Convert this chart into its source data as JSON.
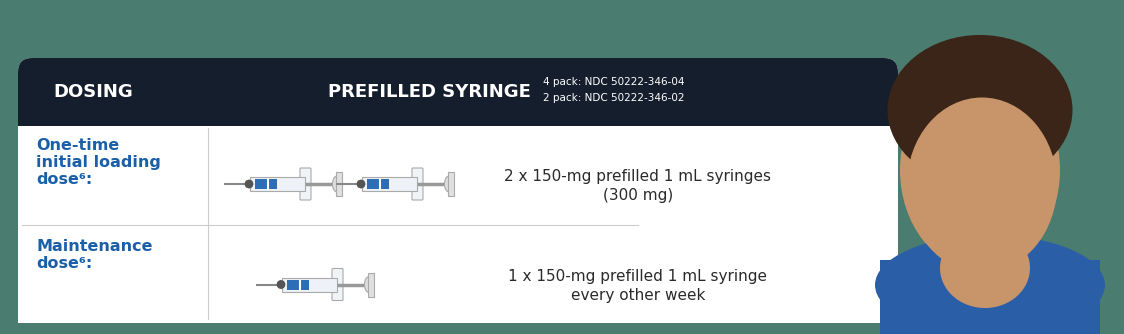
{
  "outer_bg": "#4a7c6f",
  "card_bg": "#ffffff",
  "header_bg": "#151e2d",
  "header_text_color": "#ffffff",
  "divider_color": "#cccccc",
  "blue_text": "#1a5fa8",
  "dark_text": "#2a2a2a",
  "header_left": "DOSING",
  "header_center": "PREFILLED SYRINGE",
  "header_ndc1": "4 pack: NDC 50222-346-04",
  "header_ndc2": "2 pack: NDC 50222-346-02",
  "row1_label_line1": "One-time",
  "row1_label_line2": "initial loading",
  "row1_label_line3": "dose⁶:",
  "row1_desc_line1": "2 x 150-mg prefilled 1 mL syringes",
  "row1_desc_line2": "(300 mg)",
  "row2_label_line1": "Maintenance",
  "row2_label_line2": "dose⁶:",
  "row2_desc_line1": "1 x 150-mg prefilled 1 mL syringe",
  "row2_desc_line2": "every other week",
  "figw": 11.24,
  "figh": 3.34,
  "dpi": 100
}
